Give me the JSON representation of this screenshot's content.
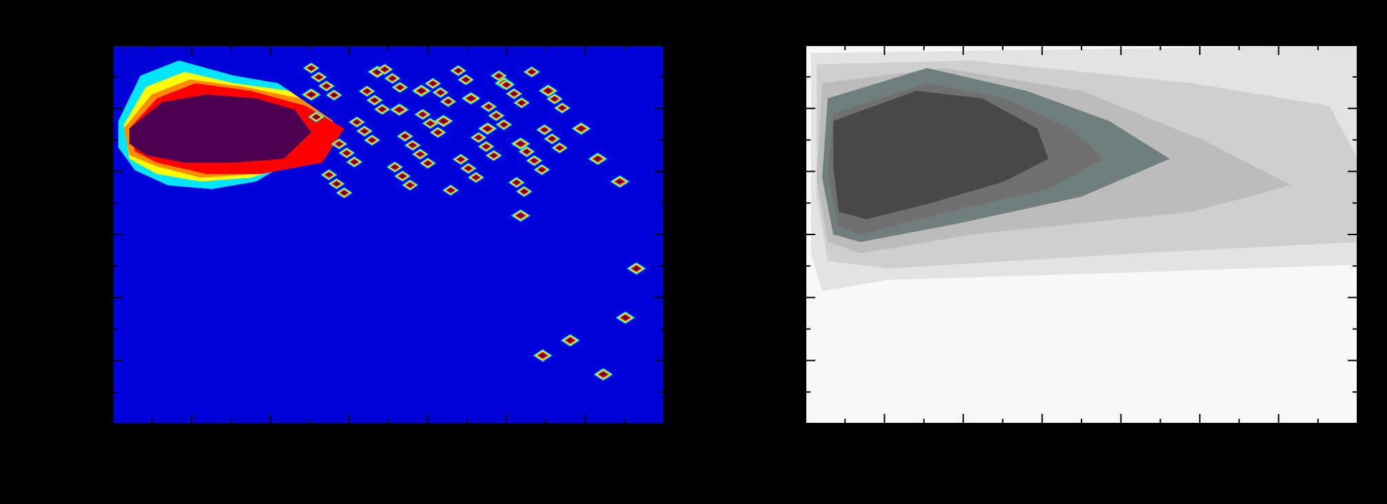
{
  "figure": {
    "background": "#000000",
    "axis_color": "#000000",
    "tick_color": "#000000"
  },
  "chart_data": [
    {
      "type": "contour",
      "title": "",
      "xlabel": "",
      "ylabel": "",
      "colormap": "jet",
      "x_ticks_major": 7,
      "x_ticks_minor_per_major": 1,
      "y_ticks_major": 6,
      "y_ticks_minor_per_major": 1,
      "colors": {
        "background": "#0000d8",
        "level_1": "#00e5ff",
        "level_2": "#ffff00",
        "level_3": "#ff8c00",
        "level_4": "#ff0000",
        "level_5": "#4b0050"
      },
      "main_blob": {
        "x_range": [
          0.0,
          0.33
        ],
        "y_range": [
          0.02,
          0.38
        ],
        "peak_region": [
          [
            0.02,
            0.17
          ],
          [
            0.3,
            0.25
          ]
        ]
      },
      "isolated_peaks_sample": [
        [
          0.36,
          0.13
        ],
        [
          0.48,
          0.07
        ],
        [
          0.52,
          0.17
        ],
        [
          0.56,
          0.12
        ],
        [
          0.6,
          0.2
        ],
        [
          0.65,
          0.14
        ],
        [
          0.68,
          0.22
        ],
        [
          0.71,
          0.1
        ],
        [
          0.74,
          0.26
        ],
        [
          0.79,
          0.12
        ],
        [
          0.85,
          0.22
        ],
        [
          0.88,
          0.3
        ],
        [
          0.92,
          0.36
        ],
        [
          0.95,
          0.59
        ],
        [
          0.93,
          0.72
        ],
        [
          0.89,
          0.87
        ],
        [
          0.83,
          0.78
        ],
        [
          0.78,
          0.82
        ],
        [
          0.74,
          0.45
        ]
      ]
    },
    {
      "type": "contour",
      "title": "",
      "xlabel": "",
      "ylabel": "",
      "colormap": "gray",
      "x_ticks_major": 7,
      "x_ticks_minor_per_major": 1,
      "y_ticks_major": 6,
      "y_ticks_minor_per_major": 1,
      "colors": {
        "background": "#f8f8f8",
        "level_1": "#e3e3e3",
        "level_2": "#cfcfcf",
        "level_3": "#bcbcbc",
        "level_4": "#707f7d",
        "level_5": "#707070",
        "level_6": "#484848"
      },
      "peak_center": [
        0.22,
        0.33
      ]
    }
  ]
}
